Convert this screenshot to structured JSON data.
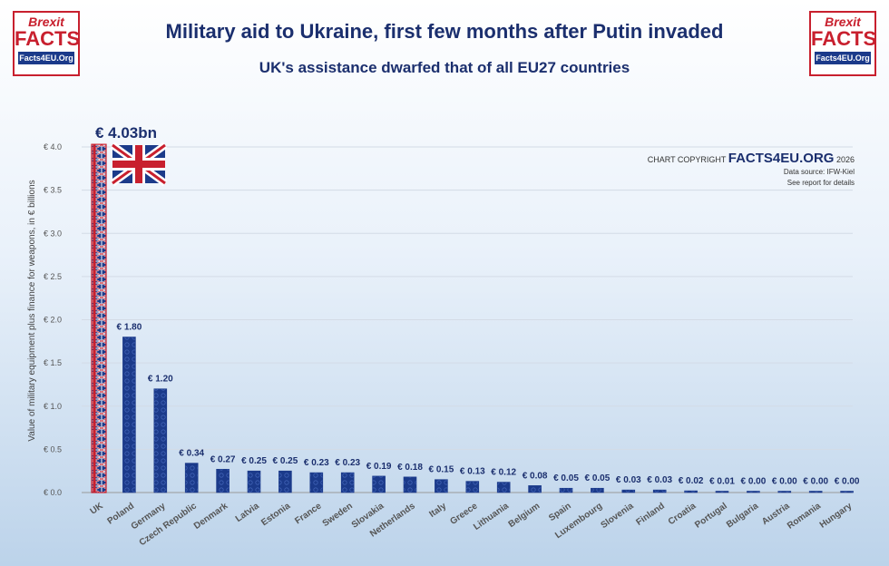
{
  "header": {
    "title": "Military aid to Ukraine, first few months after Putin invaded",
    "subtitle": "UK's assistance dwarfed that of all EU27 countries"
  },
  "logo": {
    "line1": "Brexit",
    "line2": "FACTS",
    "line3": "Facts4EU.Org"
  },
  "copyright": {
    "prefix": "CHART COPYRIGHT",
    "brand": "FACTS4EU.ORG",
    "year": "2026",
    "source": "Data source: IFW-Kiel",
    "note": "See report for details"
  },
  "colors": {
    "bar": "#1b3a8a",
    "uk_stripe_red": "#c8202e",
    "title": "#1b2f6e",
    "grid": "#d3dbe6"
  },
  "chart_data": {
    "type": "bar",
    "title": "Military aid to Ukraine, first few months after Putin invaded",
    "subtitle": "UK's assistance dwarfed that of all EU27 countries",
    "ylabel": "Value of military equipment plus finance for weapons, in € billions",
    "ylim": [
      0,
      4.0
    ],
    "yticks": [
      0,
      0.5,
      1.0,
      1.5,
      2.0,
      2.5,
      3.0,
      3.5,
      4.0
    ],
    "ytick_labels": [
      "€ 0.0",
      "€ 0.5",
      "€ 1.0",
      "€ 1.5",
      "€ 2.0",
      "€ 2.5",
      "€ 3.0",
      "€ 3.5",
      "€ 4.0"
    ],
    "grid": true,
    "categories": [
      "UK",
      "Poland",
      "Germany",
      "Czech Republic",
      "Denmark",
      "Latvia",
      "Estonia",
      "France",
      "Sweden",
      "Slovakia",
      "Netherlands",
      "Italy",
      "Greece",
      "Lithuania",
      "Belgium",
      "Spain",
      "Luxembourg",
      "Slovenia",
      "Finland",
      "Croatia",
      "Portugal",
      "Bulgaria",
      "Austria",
      "Romania",
      "Hungary"
    ],
    "values": [
      4.03,
      1.8,
      1.2,
      0.34,
      0.27,
      0.25,
      0.25,
      0.23,
      0.23,
      0.19,
      0.18,
      0.15,
      0.13,
      0.12,
      0.08,
      0.05,
      0.05,
      0.03,
      0.03,
      0.02,
      0.01,
      0.0,
      0.0,
      0.0,
      0.0
    ],
    "data_labels": [
      "€ 4.03bn",
      "€ 1.80",
      "€ 1.20",
      "€ 0.34",
      "€ 0.27",
      "€ 0.25",
      "€ 0.25",
      "€ 0.23",
      "€ 0.23",
      "€ 0.19",
      "€ 0.18",
      "€ 0.15",
      "€ 0.13",
      "€ 0.12",
      "€ 0.08",
      "€ 0.05",
      "€ 0.05",
      "€ 0.03",
      "€ 0.03",
      "€ 0.02",
      "€ 0.01",
      "€ 0.00",
      "€ 0.00",
      "€ 0.00",
      "€ 0.00"
    ],
    "highlight_flag": "union-jack-icon"
  }
}
